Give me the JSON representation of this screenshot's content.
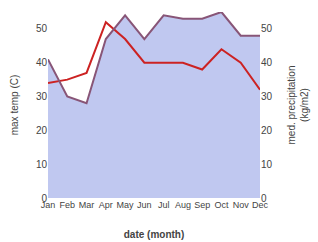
{
  "chart_data": {
    "type": "line",
    "xlabel": "date (month)",
    "ylabel": "max temp (C)",
    "y2label": "med. precipitation\n(kg/m2)",
    "categories": [
      "Jan",
      "Feb",
      "Mar",
      "Apr",
      "May",
      "Jun",
      "Jul",
      "Aug",
      "Sep",
      "Oct",
      "Nov",
      "Dec"
    ],
    "series": [
      {
        "type": "area",
        "color": "#c0c8f0",
        "values": [
          41,
          30,
          28,
          47,
          54,
          47,
          54,
          53,
          53,
          55,
          48,
          48
        ]
      },
      {
        "type": "line",
        "color": "#cc2222",
        "values": [
          34,
          35,
          37,
          52,
          47,
          40,
          40,
          40,
          38,
          44,
          40,
          32
        ]
      },
      {
        "type": "line",
        "color": "#885577",
        "axis": "y2",
        "values": [
          41,
          30,
          28,
          47,
          54,
          47,
          54,
          53,
          53,
          55,
          48,
          48
        ]
      }
    ],
    "ylim": [
      0,
      55
    ],
    "yticks": [
      0,
      10,
      20,
      30,
      40,
      50
    ],
    "y2lim": [
      0,
      55
    ],
    "y2ticks": [
      0,
      10,
      20,
      30,
      40,
      50
    ],
    "grid": false
  }
}
